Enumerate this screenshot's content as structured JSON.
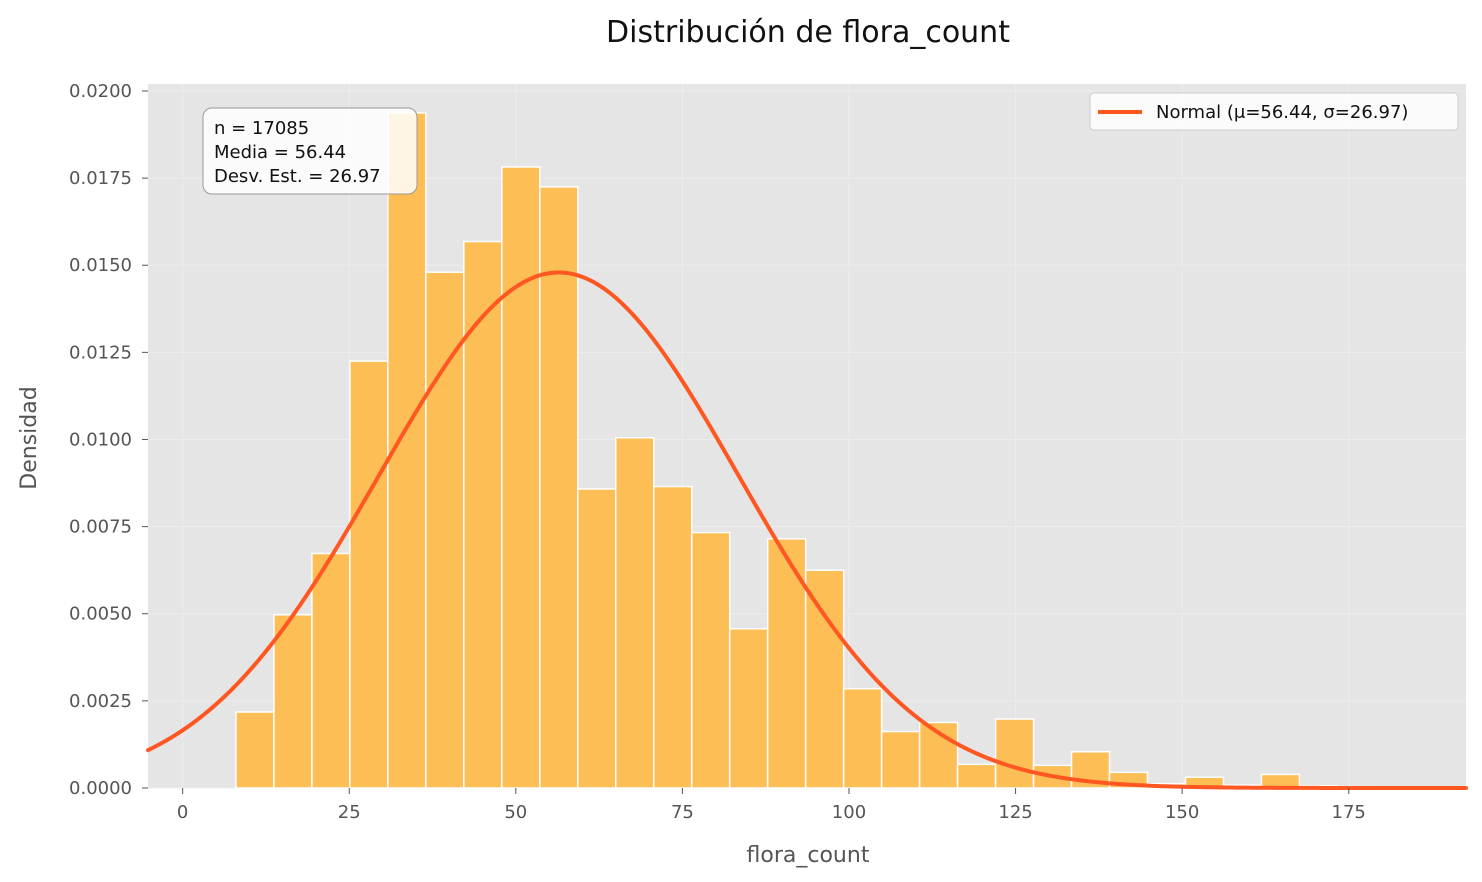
{
  "chart_data": {
    "type": "bar",
    "title": "Distribución de flora_count",
    "xlabel": "flora_count",
    "ylabel": "Densidad",
    "xlim": [
      -5.2,
      192.6
    ],
    "ylim": [
      0,
      0.0202
    ],
    "xticks": [
      0,
      25,
      50,
      75,
      100,
      125,
      150,
      175
    ],
    "yticks": [
      0.0,
      0.0025,
      0.005,
      0.0075,
      0.01,
      0.0125,
      0.015,
      0.0175,
      0.02
    ],
    "xtick_labels": [
      "0",
      "25",
      "50",
      "75",
      "100",
      "125",
      "150",
      "175"
    ],
    "ytick_labels": [
      "0.0000",
      "0.0025",
      "0.0050",
      "0.0075",
      "0.0100",
      "0.0125",
      "0.0150",
      "0.0175",
      "0.0200"
    ],
    "grid": true,
    "bar_color": "#fdbe55",
    "bin_width": 5.7,
    "bins": [
      {
        "start": 8.0,
        "value": 0.00218
      },
      {
        "start": 13.7,
        "value": 0.00497
      },
      {
        "start": 19.4,
        "value": 0.00673
      },
      {
        "start": 25.1,
        "value": 0.01225
      },
      {
        "start": 30.8,
        "value": 0.01937
      },
      {
        "start": 36.5,
        "value": 0.0148
      },
      {
        "start": 42.2,
        "value": 0.01568
      },
      {
        "start": 47.9,
        "value": 0.01782
      },
      {
        "start": 53.6,
        "value": 0.01725
      },
      {
        "start": 59.3,
        "value": 0.00858
      },
      {
        "start": 65.0,
        "value": 0.01005
      },
      {
        "start": 70.7,
        "value": 0.00865
      },
      {
        "start": 76.4,
        "value": 0.00733
      },
      {
        "start": 82.1,
        "value": 0.00457
      },
      {
        "start": 87.8,
        "value": 0.00715
      },
      {
        "start": 93.5,
        "value": 0.00625
      },
      {
        "start": 99.2,
        "value": 0.00285
      },
      {
        "start": 104.9,
        "value": 0.00162
      },
      {
        "start": 110.6,
        "value": 0.00188
      },
      {
        "start": 116.3,
        "value": 0.00068
      },
      {
        "start": 122.0,
        "value": 0.00198
      },
      {
        "start": 127.7,
        "value": 0.00065
      },
      {
        "start": 133.4,
        "value": 0.00104
      },
      {
        "start": 139.1,
        "value": 0.00045
      },
      {
        "start": 144.8,
        "value": 0.00012
      },
      {
        "start": 150.5,
        "value": 0.00031
      },
      {
        "start": 156.2,
        "value": 8e-05
      },
      {
        "start": 161.9,
        "value": 0.00039
      },
      {
        "start": 167.6,
        "value": 6e-05
      },
      {
        "start": 173.3,
        "value": 4e-05
      },
      {
        "start": 179.0,
        "value": 3e-05
      }
    ],
    "normal_curve": {
      "name": "Normal (μ=56.44, σ=26.97)",
      "mu": 56.44,
      "sigma": 26.97,
      "color": "#ff5722"
    },
    "legend_position": "upper right",
    "stats": {
      "lines": [
        "n = 17085",
        "Media = 56.44",
        "Desv. Est. = 26.97"
      ],
      "position": "upper left"
    }
  }
}
